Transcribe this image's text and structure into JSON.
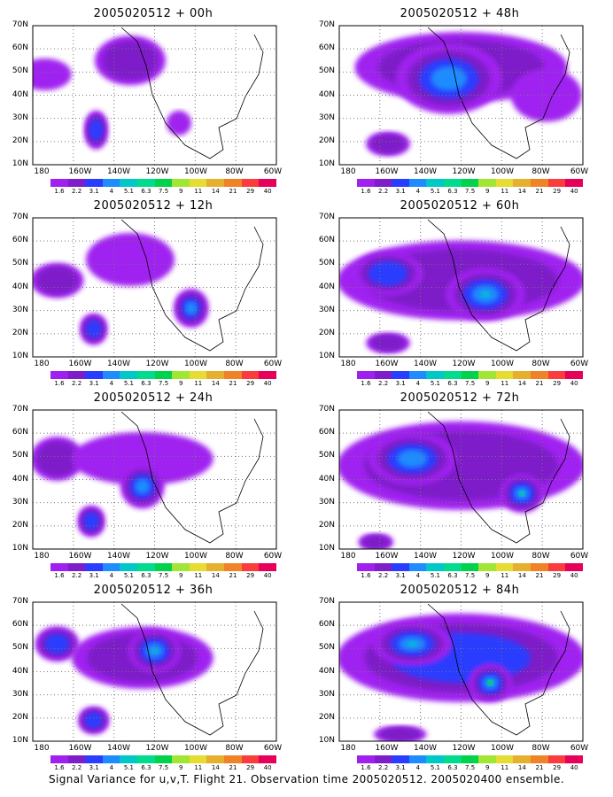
{
  "panels": [
    {
      "title": "2005020512 + 00h"
    },
    {
      "title": "2005020512 + 48h"
    },
    {
      "title": "2005020512 + 12h"
    },
    {
      "title": "2005020512 + 60h"
    },
    {
      "title": "2005020512 + 24h"
    },
    {
      "title": "2005020512 + 72h"
    },
    {
      "title": "2005020512 + 36h"
    },
    {
      "title": "2005020512 + 84h"
    }
  ],
  "lat_labels": [
    "70N",
    "60N",
    "50N",
    "40N",
    "30N",
    "20N",
    "10N"
  ],
  "lon_labels": [
    "180",
    "160W",
    "140W",
    "120W",
    "100W",
    "80W",
    "60W"
  ],
  "colorbar_labels": [
    "1.6",
    "2.2",
    "3.1",
    "4",
    "5.1",
    "6.3",
    "7.5",
    "9",
    "11",
    "14",
    "21",
    "29",
    "40"
  ],
  "colorbar_colors": [
    "#a020f0",
    "#7d1ec8",
    "#2a3cff",
    "#1e8cff",
    "#00c8c8",
    "#00dc8c",
    "#00d24b",
    "#a0e632",
    "#e6dc32",
    "#e6af2d",
    "#f08228",
    "#fa3c3c",
    "#e6005a"
  ],
  "footer": "Signal Variance for u,v,T. Flight 21. Observation time 2005020512. 2005020400 ensemble."
}
